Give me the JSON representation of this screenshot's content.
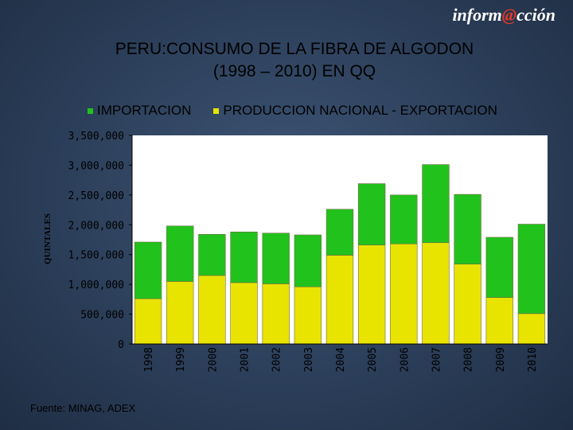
{
  "brand": {
    "prefix": "inform",
    "at": "@",
    "suffix": "cción"
  },
  "header": {
    "title_line1": "PERU:CONSUMO DE LA FIBRA DE ALGODON",
    "title_line2": "(1998 – 2010) EN QQ"
  },
  "legend": {
    "importacion": "IMPORTACION",
    "produccion": "PRODUCCION NACIONAL - EXPORTACION"
  },
  "source": "Fuente: MINAG, ADEX",
  "colors": {
    "importacion": "#22c21c",
    "produccion": "#e8e400",
    "plot_bg": "#ffffff"
  },
  "chart_data": {
    "type": "bar",
    "stacked": true,
    "title": "PERU:CONSUMO DE LA FIBRA DE ALGODON (1998 – 2010) EN QQ",
    "xlabel": "",
    "ylabel": "QUINTALES",
    "ylim": [
      0,
      3500000
    ],
    "yticks": [
      0,
      500000,
      1000000,
      1500000,
      2000000,
      2500000,
      3000000,
      3500000
    ],
    "ytick_labels": [
      "0",
      "500,000",
      "1,000,000",
      "1,500,000",
      "2,000,000",
      "2,500,000",
      "3,000,000",
      "3,500,000"
    ],
    "categories": [
      "1998",
      "1999",
      "2000",
      "2001",
      "2002",
      "2003",
      "2004",
      "2005",
      "2006",
      "2007",
      "2008",
      "2009",
      "2010"
    ],
    "series": [
      {
        "name": "PRODUCCION NACIONAL - EXPORTACION",
        "values": [
          760000,
          1050000,
          1150000,
          1030000,
          1010000,
          960000,
          1490000,
          1660000,
          1680000,
          1700000,
          1340000,
          780000,
          510000
        ]
      },
      {
        "name": "IMPORTACION",
        "values": [
          950000,
          930000,
          690000,
          850000,
          850000,
          870000,
          770000,
          1030000,
          820000,
          1310000,
          1170000,
          1010000,
          1500000
        ]
      }
    ],
    "legend_position": "top",
    "grid": false
  }
}
